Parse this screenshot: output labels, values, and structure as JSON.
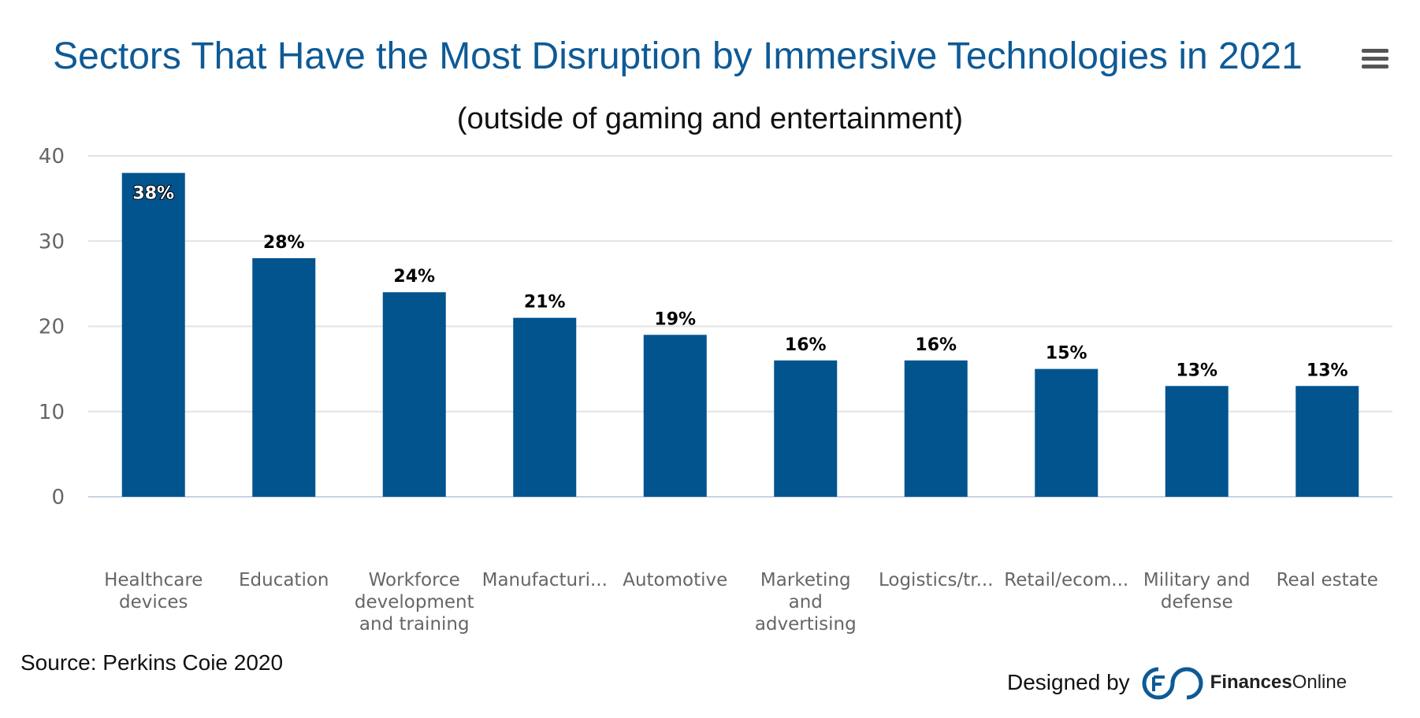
{
  "chart_data": {
    "type": "bar",
    "title": "Sectors That Have the Most Disruption by Immersive Technologies in 2021",
    "subtitle": "(outside of gaming and entertainment)",
    "categories": [
      [
        "Healthcare",
        "devices"
      ],
      [
        "Education"
      ],
      [
        "Workforce",
        "development",
        "and training"
      ],
      [
        "Manufacturi..."
      ],
      [
        "Automotive"
      ],
      [
        "Marketing",
        "and",
        "advertising"
      ],
      [
        "Logistics/tr..."
      ],
      [
        "Retail/ecom..."
      ],
      [
        "Military and",
        "defense"
      ],
      [
        "Real estate"
      ]
    ],
    "values": [
      38,
      28,
      24,
      21,
      19,
      16,
      16,
      15,
      13,
      13
    ],
    "data_labels": [
      "38%",
      "28%",
      "24%",
      "21%",
      "19%",
      "16%",
      "16%",
      "15%",
      "13%",
      "13%"
    ],
    "yticks": [
      "0",
      "10",
      "20",
      "30",
      "40"
    ],
    "ylim": [
      0,
      40
    ],
    "grid": true,
    "bar_color": "#02548f",
    "title_color": "#0e5a96"
  },
  "menu_icon": "hamburger-menu-icon",
  "footer": {
    "source": "Source: Perkins Coie 2020",
    "designed_by": "Designed by",
    "brand_bold": "Finances",
    "brand_light": "Online"
  }
}
